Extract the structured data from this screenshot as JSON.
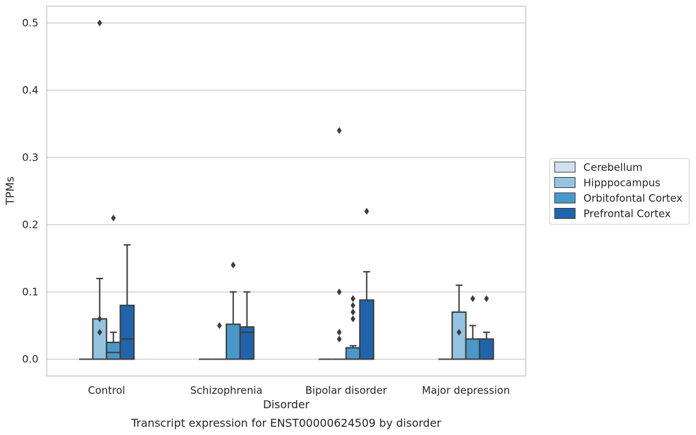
{
  "chart_data": {
    "type": "box",
    "title": "",
    "caption": "Transcript expression for ENST00000624509 by disorder",
    "xlabel": "Disorder",
    "ylabel": "TPMs",
    "ylim": [
      -0.025,
      0.525
    ],
    "yticks": [
      0.0,
      0.1,
      0.2,
      0.3,
      0.4,
      0.5
    ],
    "ytick_labels": [
      "0.0",
      "0.1",
      "0.2",
      "0.3",
      "0.4",
      "0.5"
    ],
    "grid": "horizontal",
    "legend_position": "right",
    "categories": [
      "Control",
      "Schizophrenia",
      "Bipolar disorder",
      "Major depression"
    ],
    "series": [
      {
        "name": "Cerebellum",
        "color": "#d0e1f2",
        "boxes": [
          {
            "q1": 0,
            "median": 0,
            "q3": 0,
            "whisker_low": 0,
            "whisker_high": 0,
            "outliers": []
          },
          {
            "q1": 0,
            "median": 0,
            "q3": 0,
            "whisker_low": 0,
            "whisker_high": 0,
            "outliers": []
          },
          {
            "q1": 0,
            "median": 0,
            "q3": 0,
            "whisker_low": 0,
            "whisker_high": 0,
            "outliers": []
          },
          {
            "q1": 0,
            "median": 0,
            "q3": 0,
            "whisker_low": 0,
            "whisker_high": 0,
            "outliers": []
          }
        ]
      },
      {
        "name": "Hipppocampus",
        "color": "#94c4df",
        "boxes": [
          {
            "q1": 0,
            "median": 0,
            "q3": 0.06,
            "whisker_low": 0,
            "whisker_high": 0.12,
            "outliers": [
              0.04,
              0.06,
              0.5
            ]
          },
          {
            "q1": 0,
            "median": 0,
            "q3": 0,
            "whisker_low": 0,
            "whisker_high": 0,
            "outliers": [
              0.05
            ]
          },
          {
            "q1": 0,
            "median": 0,
            "q3": 0,
            "whisker_low": 0,
            "whisker_high": 0,
            "outliers": [
              0.03,
              0.04,
              0.1,
              0.34
            ]
          },
          {
            "q1": 0,
            "median": 0,
            "q3": 0.07,
            "whisker_low": 0,
            "whisker_high": 0.11,
            "outliers": [
              0.04
            ]
          }
        ]
      },
      {
        "name": "Orbitofontal Cortex",
        "color": "#4a98c9",
        "boxes": [
          {
            "q1": 0,
            "median": 0.01,
            "q3": 0.025,
            "whisker_low": 0,
            "whisker_high": 0.04,
            "outliers": [
              0.21
            ]
          },
          {
            "q1": 0,
            "median": 0,
            "q3": 0.052,
            "whisker_low": 0,
            "whisker_high": 0.1,
            "outliers": [
              0.14
            ]
          },
          {
            "q1": 0,
            "median": 0,
            "q3": 0.017,
            "whisker_low": 0,
            "whisker_high": 0.02,
            "outliers": [
              0.06,
              0.07,
              0.08,
              0.09
            ]
          },
          {
            "q1": 0,
            "median": 0,
            "q3": 0.03,
            "whisker_low": 0,
            "whisker_high": 0.05,
            "outliers": [
              0.09
            ]
          }
        ]
      },
      {
        "name": "Prefrontal Cortex",
        "color": "#2164ab",
        "boxes": [
          {
            "q1": 0,
            "median": 0.03,
            "q3": 0.08,
            "whisker_low": 0,
            "whisker_high": 0.17,
            "outliers": []
          },
          {
            "q1": 0,
            "median": 0.04,
            "q3": 0.048,
            "whisker_low": 0,
            "whisker_high": 0.1,
            "outliers": []
          },
          {
            "q1": 0,
            "median": 0,
            "q3": 0.088,
            "whisker_low": 0,
            "whisker_high": 0.13,
            "outliers": [
              0.22
            ]
          },
          {
            "q1": 0,
            "median": 0,
            "q3": 0.03,
            "whisker_low": 0,
            "whisker_high": 0.04,
            "outliers": [
              0.09
            ]
          }
        ]
      }
    ]
  }
}
